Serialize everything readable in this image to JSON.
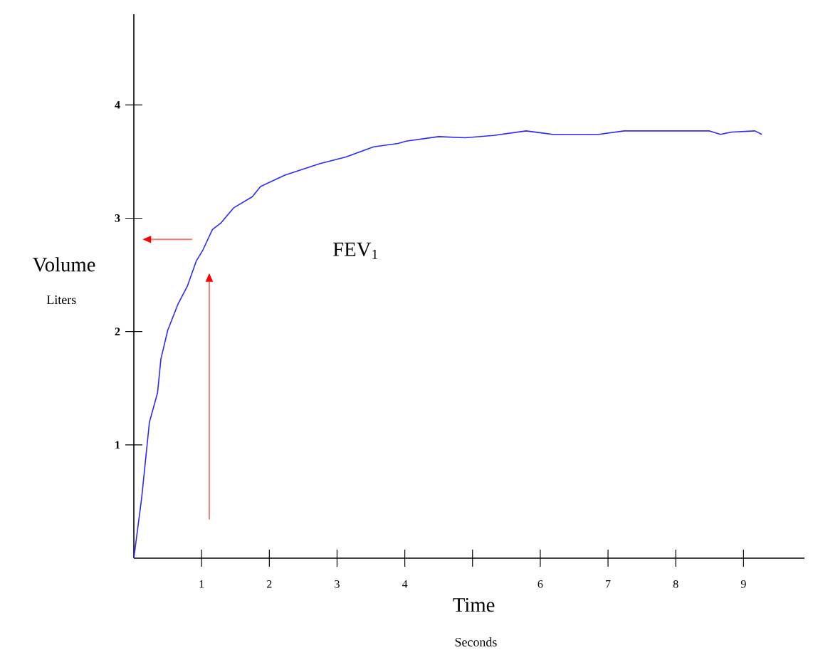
{
  "chart_data": {
    "type": "line",
    "xlabel": "Time",
    "ylabel": "Volume",
    "xlim": [
      0,
      9.9
    ],
    "ylim": [
      0,
      4.8
    ],
    "xticks": [
      1,
      2,
      3,
      4,
      {
        "value": 5,
        "label": null
      },
      6,
      7,
      8,
      9
    ],
    "yticks": [
      1,
      2,
      3,
      4
    ],
    "grid": false,
    "marker": "none",
    "line_style": "solid",
    "annotations": [
      "FEV$_{1}$",
      "Liters",
      "Seconds"
    ],
    "series": [
      {
        "color": "#2a2aff",
        "x": [
          0,
          0.115,
          0.23,
          0.35,
          0.4,
          0.5,
          0.65,
          0.79,
          0.92,
          1.02,
          1.16,
          1.29,
          1.47,
          1.75,
          1.87,
          2.23,
          2.74,
          3.13,
          3.54,
          3.9,
          4.02,
          4.5,
          4.89,
          5.31,
          5.79,
          6.18,
          6.86,
          7.24,
          7.64,
          8.5,
          8.66,
          8.83,
          9.17,
          9.27
        ],
        "values": [
          0,
          0.53,
          1.2,
          1.46,
          1.76,
          2.01,
          2.24,
          2.4,
          2.62,
          2.72,
          2.9,
          2.96,
          3.09,
          3.19,
          3.28,
          3.38,
          3.48,
          3.54,
          3.63,
          3.66,
          3.68,
          3.72,
          3.71,
          3.73,
          3.77,
          3.74,
          3.74,
          3.77,
          3.77,
          3.77,
          3.74,
          3.76,
          3.77,
          3.74
        ]
      }
    ]
  }
}
